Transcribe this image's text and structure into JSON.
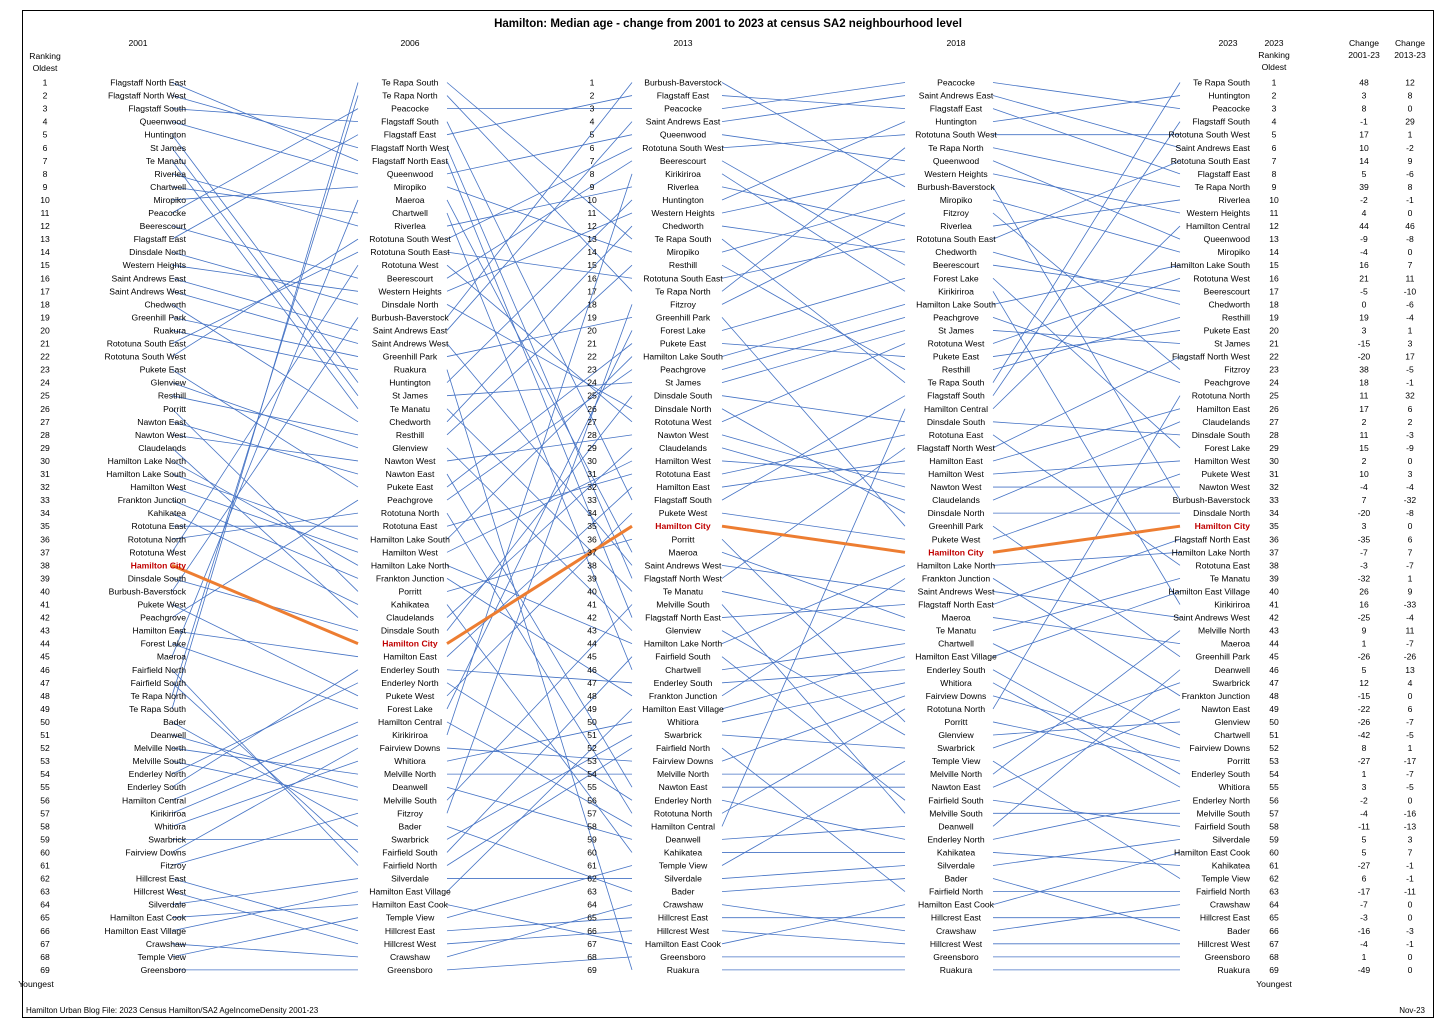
{
  "chart_data": {
    "type": "slope",
    "title": "Hamilton: Median age - change from 2001 to 2023 at census SA2 neighbourhood level",
    "years": [
      "2001",
      "2006",
      "2013",
      "2018",
      "2023"
    ],
    "ranking_label_left": [
      "Ranking",
      "Oldest"
    ],
    "ranking_label_right": [
      "2023",
      "Ranking",
      "Oldest"
    ],
    "youngest_label": "Youngest",
    "change_headers": [
      [
        "Change",
        "2001-23"
      ],
      [
        "Change",
        "2013-23"
      ]
    ],
    "highlight": "Hamilton City",
    "ranks": {
      "2001": [
        "Flagstaff North East",
        "Flagstaff North West",
        "Flagstaff South",
        "Queenwood",
        "Huntington",
        "St James",
        "Te Manatu",
        "Riverlea",
        "Chartwell",
        "Miropiko",
        "Peacocke",
        "Beerescourt",
        "Flagstaff East",
        "Dinsdale North",
        "Western Heights",
        "Saint Andrews East",
        "Saint Andrews West",
        "Chedworth",
        "Greenhill Park",
        "Ruakura",
        "Rototuna South East",
        "Rototuna South West",
        "Pukete East",
        "Glenview",
        "Resthill",
        "Porritt",
        "Nawton East",
        "Nawton West",
        "Claudelands",
        "Hamilton Lake North",
        "Hamilton Lake South",
        "Hamilton West",
        "Frankton Junction",
        "Kahikatea",
        "Rototuna East",
        "Rototuna North",
        "Rototuna West",
        "Hamilton City",
        "Dinsdale South",
        "Burbush-Baverstock",
        "Pukete West",
        "Peachgrove",
        "Hamilton East",
        "Forest Lake",
        "Maeroa",
        "Fairfield North",
        "Fairfield South",
        "Te Rapa North",
        "Te Rapa South",
        "Bader",
        "Deanwell",
        "Melville North",
        "Melville South",
        "Enderley North",
        "Enderley South",
        "Hamilton Central",
        "Kirikiriroa",
        "Whitiora",
        "Swarbrick",
        "Fairview Downs",
        "Fitzroy",
        "Hillcrest East",
        "Hillcrest West",
        "Silverdale",
        "Hamilton East Cook",
        "Hamilton East Village",
        "Crawshaw",
        "Temple View",
        "Greensboro"
      ],
      "2006": [
        "Te Rapa South",
        "Te Rapa North",
        "Peacocke",
        "Flagstaff South",
        "Flagstaff East",
        "Flagstaff North West",
        "Flagstaff North East",
        "Queenwood",
        "Miropiko",
        "Maeroa",
        "Chartwell",
        "Riverlea",
        "Rototuna South West",
        "Rototuna South East",
        "Rototuna West",
        "Beerescourt",
        "Western Heights",
        "Dinsdale North",
        "Burbush-Baverstock",
        "Saint Andrews East",
        "Saint Andrews West",
        "Greenhill Park",
        "Ruakura",
        "Huntington",
        "St James",
        "Te Manatu",
        "Chedworth",
        "Resthill",
        "Glenview",
        "Nawton West",
        "Nawton East",
        "Pukete East",
        "Peachgrove",
        "Rototuna North",
        "Rototuna East",
        "Hamilton Lake South",
        "Hamilton West",
        "Hamilton Lake North",
        "Frankton Junction",
        "Porritt",
        "Kahikatea",
        "Claudelands",
        "Dinsdale South",
        "Hamilton City",
        "Hamilton East",
        "Enderley South",
        "Enderley North",
        "Pukete West",
        "Forest Lake",
        "Hamilton Central",
        "Kirikiriroa",
        "Fairview Downs",
        "Whitiora",
        "Melville North",
        "Deanwell",
        "Melville South",
        "Fitzroy",
        "Bader",
        "Swarbrick",
        "Fairfield South",
        "Fairfield North",
        "Silverdale",
        "Hamilton East Village",
        "Hamilton East Cook",
        "Temple View",
        "Hillcrest East",
        "Hillcrest West",
        "Crawshaw",
        "Greensboro"
      ],
      "2013": [
        "Burbush-Baverstock",
        "Flagstaff East",
        "Peacocke",
        "Saint Andrews East",
        "Queenwood",
        "Rototuna South West",
        "Beerescourt",
        "Kirikiriroa",
        "Riverlea",
        "Huntington",
        "Western Heights",
        "Chedworth",
        "Te Rapa South",
        "Miropiko",
        "Resthill",
        "Rototuna South East",
        "Te Rapa North",
        "Fitzroy",
        "Greenhill Park",
        "Forest Lake",
        "Pukete East",
        "Hamilton Lake South",
        "Peachgrove",
        "St James",
        "Dinsdale South",
        "Dinsdale North",
        "Rototuna West",
        "Nawton West",
        "Claudelands",
        "Hamilton West",
        "Rototuna East",
        "Hamilton East",
        "Flagstaff South",
        "Pukete West",
        "Hamilton City",
        "Porritt",
        "Maeroa",
        "Saint Andrews West",
        "Flagstaff North West",
        "Te Manatu",
        "Melville South",
        "Flagstaff North East",
        "Glenview",
        "Hamilton Lake North",
        "Fairfield South",
        "Chartwell",
        "Enderley South",
        "Frankton Junction",
        "Hamilton East Village",
        "Whitiora",
        "Swarbrick",
        "Fairfield North",
        "Fairview Downs",
        "Melville North",
        "Nawton East",
        "Enderley North",
        "Rototuna North",
        "Hamilton Central",
        "Deanwell",
        "Kahikatea",
        "Temple View",
        "Silverdale",
        "Bader",
        "Crawshaw",
        "Hillcrest East",
        "Hillcrest West",
        "Hamilton East Cook",
        "Greensboro",
        "Ruakura"
      ],
      "2018": [
        "Peacocke",
        "Saint Andrews East",
        "Flagstaff East",
        "Huntington",
        "Rototuna South West",
        "Te Rapa North",
        "Queenwood",
        "Western Heights",
        "Burbush-Baverstock",
        "Miropiko",
        "Fitzroy",
        "Riverlea",
        "Rototuna South East",
        "Chedworth",
        "Beerescourt",
        "Forest Lake",
        "Kirikiriroa",
        "Hamilton Lake South",
        "Peachgrove",
        "St James",
        "Rototuna West",
        "Pukete East",
        "Resthill",
        "Te Rapa South",
        "Flagstaff South",
        "Hamilton Central",
        "Dinsdale South",
        "Rototuna East",
        "Flagstaff North West",
        "Hamilton East",
        "Hamilton West",
        "Nawton West",
        "Claudelands",
        "Dinsdale North",
        "Greenhill Park",
        "Pukete West",
        "Hamilton City",
        "Hamilton Lake North",
        "Frankton Junction",
        "Saint Andrews West",
        "Flagstaff North East",
        "Maeroa",
        "Te Manatu",
        "Chartwell",
        "Hamilton East Village",
        "Enderley South",
        "Whitiora",
        "Fairview Downs",
        "Rototuna North",
        "Porritt",
        "Glenview",
        "Swarbrick",
        "Temple View",
        "Melville North",
        "Nawton East",
        "Fairfield South",
        "Melville South",
        "Deanwell",
        "Enderley North",
        "Kahikatea",
        "Silverdale",
        "Bader",
        "Fairfield North",
        "Hamilton East Cook",
        "Hillcrest East",
        "Crawshaw",
        "Hillcrest West",
        "Greensboro",
        "Ruakura"
      ],
      "2023": [
        "Te Rapa South",
        "Huntington",
        "Peacocke",
        "Flagstaff South",
        "Rototuna South West",
        "Saint Andrews East",
        "Rototuna South East",
        "Flagstaff East",
        "Te Rapa North",
        "Riverlea",
        "Western Heights",
        "Hamilton Central",
        "Queenwood",
        "Miropiko",
        "Hamilton Lake South",
        "Rototuna West",
        "Beerescourt",
        "Chedworth",
        "Resthill",
        "Pukete East",
        "St James",
        "Flagstaff North West",
        "Fitzroy",
        "Peachgrove",
        "Rototuna North",
        "Hamilton East",
        "Claudelands",
        "Dinsdale South",
        "Forest Lake",
        "Hamilton West",
        "Pukete West",
        "Nawton West",
        "Burbush-Baverstock",
        "Dinsdale North",
        "Hamilton City",
        "Flagstaff North East",
        "Hamilton Lake North",
        "Rototuna East",
        "Te Manatu",
        "Hamilton East Village",
        "Kirikiriroa",
        "Saint Andrews West",
        "Melville North",
        "Maeroa",
        "Greenhill Park",
        "Deanwell",
        "Swarbrick",
        "Frankton Junction",
        "Nawton East",
        "Glenview",
        "Chartwell",
        "Fairview Downs",
        "Porritt",
        "Enderley South",
        "Whitiora",
        "Enderley North",
        "Melville South",
        "Fairfield South",
        "Silverdale",
        "Hamilton East Cook",
        "Kahikatea",
        "Temple View",
        "Fairfield North",
        "Crawshaw",
        "Hillcrest East",
        "Bader",
        "Hillcrest West",
        "Greensboro",
        "Ruakura"
      ]
    },
    "change_2001_23": [
      "48",
      "3",
      "8",
      "-1",
      "17",
      "10",
      "14",
      "5",
      "39",
      "-2",
      "4",
      "44",
      "-9",
      "-4",
      "16",
      "21",
      "-5",
      "0",
      "19",
      "3",
      "-15",
      "-20",
      "38",
      "18",
      "11",
      "17",
      "2",
      "11",
      "15",
      "2",
      "10",
      "-4",
      "7",
      "-20",
      "3",
      "-35",
      "-7",
      "-3",
      "-32",
      "26",
      "16",
      "-25",
      "9",
      "1",
      "-26",
      "5",
      "12",
      "-15",
      "-22",
      "-26",
      "-42",
      "8",
      "-27",
      "1",
      "3",
      "-2",
      "-4",
      "-11",
      "5",
      "5",
      "-27",
      "6",
      "-17",
      "-7",
      "-3",
      "-16",
      "-4",
      "1",
      "-49"
    ],
    "change_2013_23": [
      "12",
      "8",
      "0",
      "29",
      "1",
      "-2",
      "9",
      "-6",
      "8",
      "-1",
      "0",
      "46",
      "-8",
      "0",
      "7",
      "11",
      "-10",
      "-6",
      "-4",
      "1",
      "3",
      "17",
      "-5",
      "-1",
      "32",
      "6",
      "2",
      "-3",
      "-9",
      "0",
      "3",
      "-4",
      "-32",
      "-8",
      "0",
      "6",
      "7",
      "-7",
      "1",
      "9",
      "-33",
      "-4",
      "11",
      "-7",
      "-26",
      "13",
      "4",
      "0",
      "6",
      "-7",
      "-5",
      "1",
      "-17",
      "-7",
      "-5",
      "0",
      "-16",
      "-13",
      "3",
      "7",
      "-1",
      "-1",
      "-11",
      "0",
      "0",
      "-3",
      "-1",
      "0",
      "0"
    ]
  },
  "footer": {
    "source": "Hamilton Urban Blog File: 2023 Census Hamilton/SA2 AgeIncomeDensity 2001-23",
    "date": "Nov-23"
  },
  "colors": {
    "link": "#4472c4",
    "highlight_line": "#ed7d31",
    "highlight_text": "#c00000"
  }
}
